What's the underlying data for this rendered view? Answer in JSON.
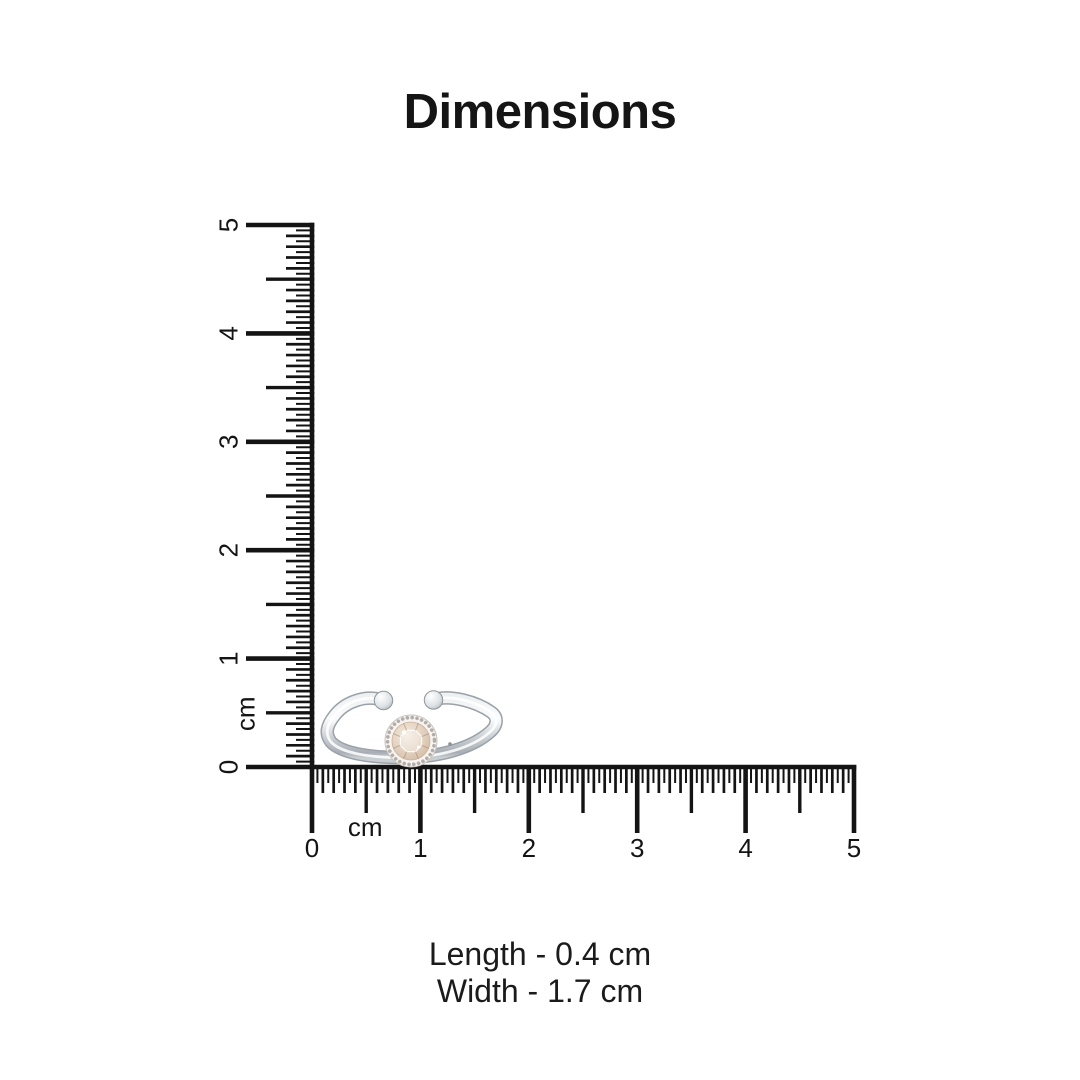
{
  "title": "Dimensions",
  "specs": {
    "length_label": "Length - 0.4 cm",
    "width_label": "Width - 1.7 cm"
  },
  "rulers": {
    "unit_label": "cm",
    "horizontal": {
      "min": 0,
      "max": 5,
      "tick_labels": [
        "0",
        "1",
        "2",
        "3",
        "4",
        "5"
      ]
    },
    "vertical": {
      "min": 0,
      "max": 5,
      "tick_labels": [
        "0",
        "1",
        "2",
        "3",
        "4",
        "5"
      ]
    }
  },
  "product": {
    "description": "silver open adjustable ring with round champagne stone in beaded bezel"
  },
  "colors": {
    "background": "#ffffff",
    "ruler": "#141414",
    "label_text": "#141414",
    "title_text": "#151515",
    "spec_text": "#1b1b1b",
    "band_silver": "#c9ced3",
    "band_highlight": "#ffffff",
    "band_shadow": "#9aa1a7",
    "stone_champagne": "#e5d4c2",
    "stone_rim_beads": "#b2ada8"
  }
}
